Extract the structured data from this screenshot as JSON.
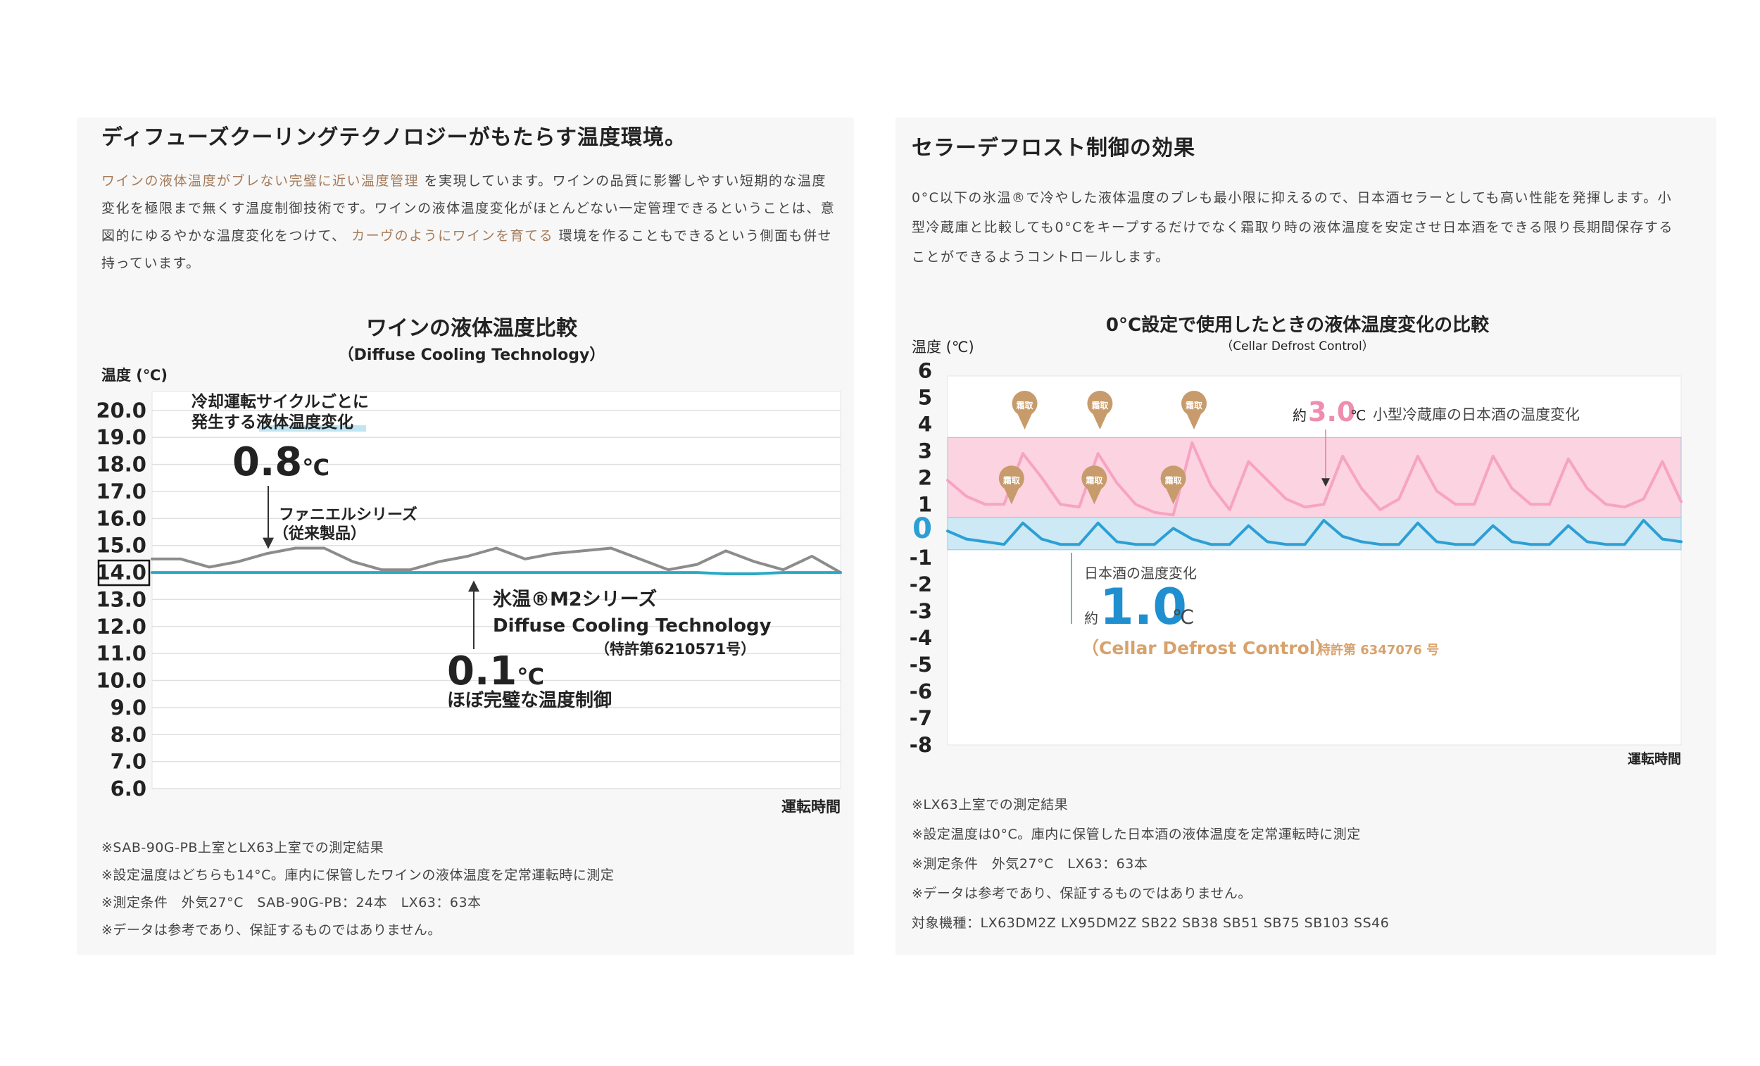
{
  "panels": [
    {
      "heading": "ディフューズクーリングテクノロジーがもたらす温度環境。",
      "paragraph": [
        {
          "text": "ワインの液体温度がブレない完璧に近い温度管理",
          "emphasis": true
        },
        {
          "text": " を実現しています。ワインの品質に影響しやすい短期的な温度変化を極限まで無くす温度制御技術です。ワインの液体温度変化がほとんどない一定管理できるということは、意図的にゆるやかな温度変化をつけて、 "
        },
        {
          "text": "カーヴのようにワインを育てる",
          "emphasis": true
        },
        {
          "text": " 環境を作ることもできるという側面も併せ持っています。"
        }
      ],
      "notes": [
        "※SAB-90G-PB上室とLX63上室での測定結果",
        "※設定温度はどちらも14°C。庫内に保管したワインの液体温度を定常運転時に測定",
        "※測定条件　外気27°C　SAB-90G-PB：24本　LX63：63本",
        "※データは参考であり、保証するものではありません。"
      ]
    },
    {
      "heading": "セラーデフロスト制御の効果",
      "paragraph": [
        {
          "text": "0°C以下の氷温®で冷やした液体温度のブレも最小限に抑えるので、日本酒セラーとしても高い性能を発揮します。小型冷蔵庫と比較しても0°Cをキープするだけでなく霜取り時の液体温度を安定させ日本酒をできる限り長期間保存することができるようコントロールします。"
        }
      ],
      "notes": [
        "※LX63上室での測定結果",
        "※設定温度は0°C。庫内に保管した日本酒の液体温度を定常運転時に測定",
        "※測定条件　外気27°C　LX63：63本",
        "※データは参考であり、保証するものではありません。",
        "対象機種：LX63DM2Z LX95DM2Z SB22 SB38 SB51 SB75 SB103 SS46"
      ]
    }
  ],
  "chart_data": [
    {
      "type": "line",
      "title": "ワインの液体温度比較",
      "subtitle": "（Diffuse Cooling Technology）",
      "y_label": "温度 (℃)",
      "x_label": "運転時間",
      "categories": [
        null,
        null,
        null,
        null,
        null,
        null,
        null,
        null,
        null,
        null,
        null,
        null,
        null,
        null,
        null,
        null,
        null,
        null,
        null,
        null,
        null,
        null,
        null,
        null,
        null
      ],
      "series": [
        {
          "color": "#8c8c8c",
          "values": [
            14.5,
            14.5,
            14.2,
            14.4,
            14.7,
            14.9,
            14.9,
            14.4,
            14.1,
            14.1,
            14.4,
            14.6,
            14.9,
            14.5,
            14.7,
            14.8,
            14.9,
            14.5,
            14.1,
            14.3,
            14.8,
            14.4,
            14.1,
            14.6,
            14.0
          ]
        },
        {
          "color": "#29a9c5",
          "values": [
            14.0,
            14.0,
            14.0,
            14.0,
            14.0,
            14.0,
            14.0,
            14.0,
            14.0,
            14.0,
            14.0,
            14.0,
            14.0,
            14.0,
            14.0,
            14.0,
            14.0,
            14.0,
            14.0,
            14.0,
            13.95,
            13.95,
            14.0,
            14.0,
            14.0
          ]
        }
      ],
      "ylim": [
        6,
        20.7
      ],
      "yticks": [
        {
          "value": 6,
          "label": "6.0"
        },
        {
          "value": 7,
          "label": "7.0"
        },
        {
          "value": 8,
          "label": "8.0"
        },
        {
          "value": 9,
          "label": "9.0"
        },
        {
          "value": 10,
          "label": "10.0"
        },
        {
          "value": 11,
          "label": "11.0"
        },
        {
          "value": 12,
          "label": "12.0"
        },
        {
          "value": 13,
          "label": "13.0"
        },
        {
          "value": 14,
          "label": "14.0"
        },
        {
          "value": 15,
          "label": "15.0"
        },
        {
          "value": 16,
          "label": "16.0"
        },
        {
          "value": 17,
          "label": "17.0"
        },
        {
          "value": 18,
          "label": "18.0"
        },
        {
          "value": 19,
          "label": "19.0"
        },
        {
          "value": 20,
          "label": "20.0"
        }
      ],
      "grid": true,
      "boxed_ytick": 14,
      "annotations": {
        "cycle_line1": "冷却運転サイクルごとに",
        "cycle_line2a": "発生する",
        "cycle_line2b": "液体温度変化",
        "big_value": "0.8",
        "big_unit": "℃",
        "old_name": "ファニエルシリーズ",
        "old_note": "（従来製品）",
        "new_name": "氷温®M2シリーズ",
        "new_tech": "Diffuse Cooling Technology",
        "new_patent": "（特許第6210571号）",
        "small_value": "0.1",
        "small_unit": "℃",
        "small_caption": "ほぼ完璧な温度制御"
      }
    },
    {
      "type": "line",
      "title": "0°C設定で使用したときの液体温度変化の比較",
      "subtitle": "（Cellar Defrost Control）",
      "y_label": "温度 (℃)",
      "x_label": "運転時間",
      "categories": [
        null,
        null,
        null,
        null,
        null,
        null,
        null,
        null,
        null,
        null,
        null,
        null,
        null,
        null,
        null,
        null,
        null,
        null,
        null,
        null,
        null,
        null,
        null,
        null,
        null,
        null,
        null,
        null,
        null,
        null,
        null,
        null,
        null,
        null,
        null,
        null,
        null,
        null,
        null,
        null
      ],
      "series": [
        {
          "color": "#f7a3c2",
          "values": [
            1.9,
            1.3,
            1.0,
            1.0,
            2.9,
            2.0,
            1.0,
            0.9,
            2.9,
            1.8,
            1.0,
            0.7,
            0.6,
            3.3,
            1.7,
            0.8,
            2.6,
            1.9,
            1.2,
            0.9,
            1.0,
            2.8,
            1.6,
            0.8,
            1.2,
            2.8,
            1.5,
            1.0,
            1.0,
            2.8,
            1.6,
            1.0,
            1.0,
            2.7,
            1.6,
            1.0,
            0.9,
            1.2,
            2.6,
            1.1
          ]
        },
        {
          "color": "#2d9fd4",
          "values": [
            0.0,
            -0.3,
            -0.4,
            -0.5,
            0.3,
            -0.3,
            -0.5,
            -0.5,
            0.3,
            -0.4,
            -0.5,
            -0.5,
            0.1,
            -0.3,
            -0.5,
            -0.5,
            0.2,
            -0.4,
            -0.5,
            -0.5,
            0.4,
            -0.2,
            -0.4,
            -0.5,
            -0.5,
            0.3,
            -0.4,
            -0.5,
            -0.5,
            0.2,
            -0.4,
            -0.5,
            -0.5,
            0.2,
            -0.4,
            -0.5,
            -0.5,
            0.4,
            -0.3,
            -0.4
          ]
        }
      ],
      "bands": [
        {
          "from": 0.5,
          "to": 3.5,
          "color": "#fbd3e1"
        },
        {
          "from": -0.7,
          "to": 0.5,
          "color": "#cde9f5"
        }
      ],
      "ylim": [
        -8,
        5.8
      ],
      "yticks": [
        -8,
        -7,
        -6,
        -5,
        -4,
        -3,
        -2,
        -1,
        0,
        1,
        2,
        3,
        4,
        5,
        6
      ],
      "grid": false,
      "emphasized_ytick": 0,
      "emphasized_color": "#2d9fd4",
      "defrost_markers": [
        {
          "label": "霜取",
          "x": 4.1,
          "value": 3.8
        },
        {
          "label": "霜取",
          "x": 8.1,
          "value": 3.8
        },
        {
          "label": "霜取",
          "x": 13.1,
          "value": 3.8
        },
        {
          "label": "霜取",
          "x": 3.4,
          "value": 1.0
        },
        {
          "label": "霜取",
          "x": 7.8,
          "value": 1.0
        },
        {
          "label": "霜取",
          "x": 12.0,
          "value": 1.0
        }
      ],
      "marker_color": "#c79b6b",
      "annotations": {
        "approx1": "約",
        "pink_value": "3.0",
        "pink_unit": "℃",
        "pink_caption": "小型冷蔵庫の日本酒の温度変化",
        "blue_caption": "日本酒の温度変化",
        "approx2": "約",
        "blue_value": "1.0",
        "blue_unit": "℃",
        "control_name": "（Cellar Defrost Control）",
        "patent": "特許第 6347076 号"
      }
    }
  ]
}
